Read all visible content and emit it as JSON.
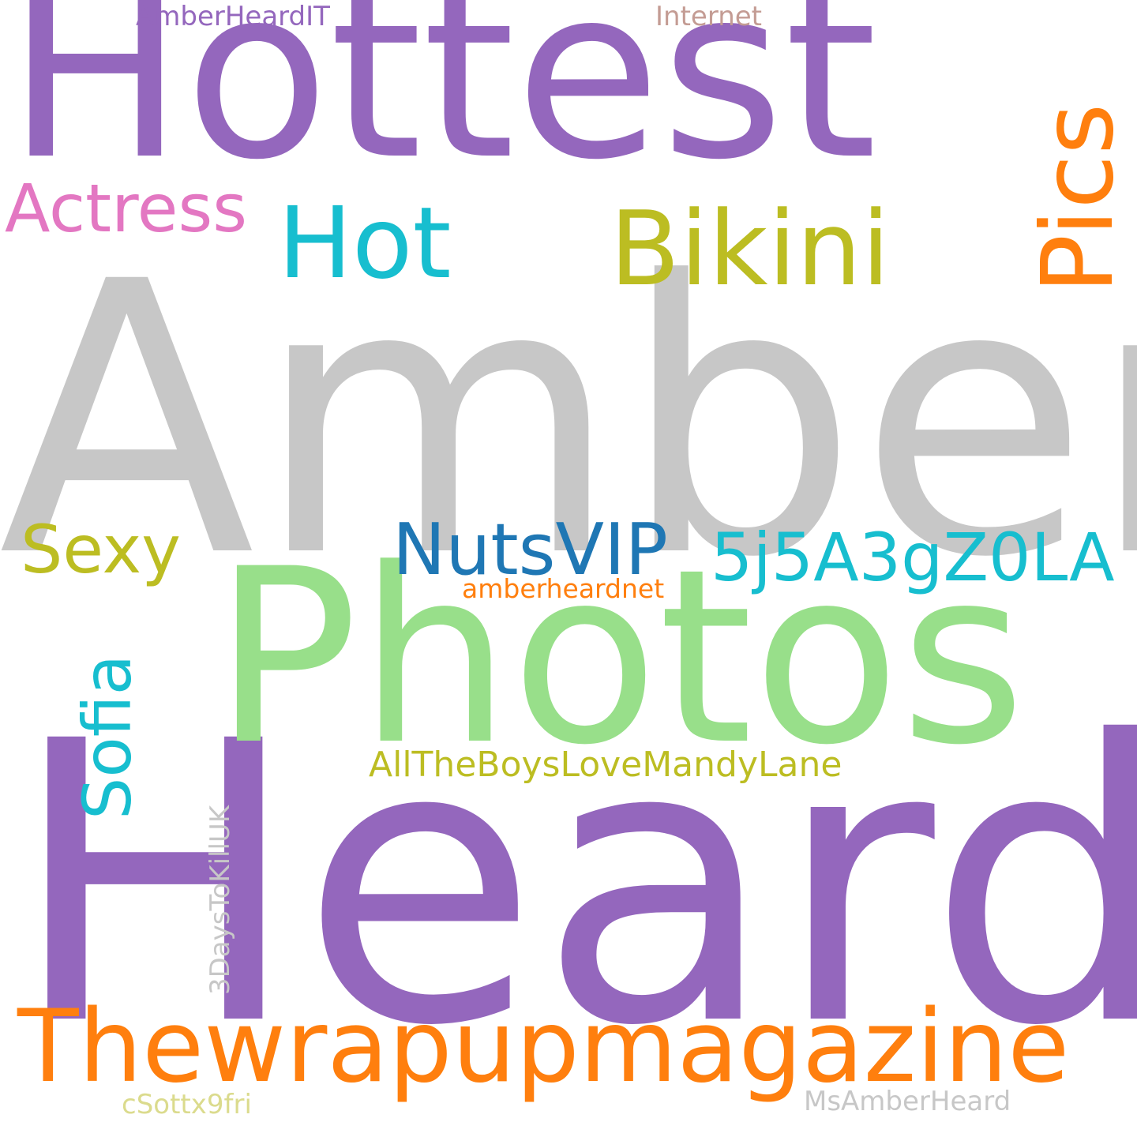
{
  "words": {
    "amber": {
      "text": "Amber",
      "color": "#c7c7c7"
    },
    "heard": {
      "text": "Heard",
      "color": "#9467bd"
    },
    "hottest": {
      "text": "Hottest",
      "color": "#9467bd"
    },
    "photos": {
      "text": "Photos",
      "color": "#98df8a"
    },
    "thewrapupmagazine": {
      "text": "Thewrapupmagazine",
      "color": "#ff7f0e"
    },
    "bikini": {
      "text": "Bikini",
      "color": "#bcbd22"
    },
    "hot": {
      "text": "Hot",
      "color": "#17becf"
    },
    "pics": {
      "text": "Pics",
      "color": "#ff7f0e"
    },
    "actress": {
      "text": "Actress",
      "color": "#e377c2"
    },
    "nutsvip": {
      "text": "NutsVIP",
      "color": "#1f77b4"
    },
    "code": {
      "text": "5j5A3gZ0LA",
      "color": "#17becf"
    },
    "sexy": {
      "text": "Sexy",
      "color": "#bcbd22"
    },
    "sofia": {
      "text": "Sofia",
      "color": "#17becf"
    },
    "allboys": {
      "text": "AllTheBoysLoveMandyLane",
      "color": "#bcbd22"
    },
    "amberheardnet": {
      "text": "amberheardnet",
      "color": "#ff7f0e"
    },
    "threedays": {
      "text": "3DaysToKillUK",
      "color": "#c7c7c7"
    },
    "amberheardit": {
      "text": "AmberHeardIT",
      "color": "#9467bd"
    },
    "internet": {
      "text": "Internet",
      "color": "#c49c94"
    },
    "msamberheard": {
      "text": "MsAmberHeard",
      "color": "#c7c7c7"
    },
    "csott": {
      "text": "cSottx9fri",
      "color": "#dbdb8d"
    }
  }
}
